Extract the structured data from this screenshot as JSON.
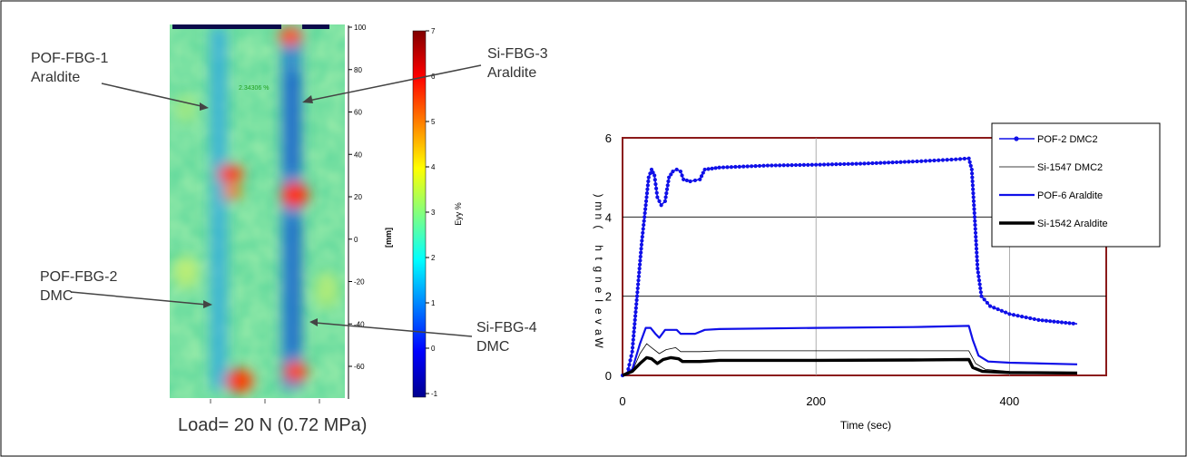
{
  "strain_map": {
    "callouts": {
      "pof_fbg_1": [
        "POF-FBG-1",
        "Araldite"
      ],
      "si_fbg_3": [
        "Si-FBG-3",
        "Araldite"
      ],
      "pof_fbg_2": [
        "POF-FBG-2",
        "DMC"
      ],
      "si_fbg_4": [
        "Si-FBG-4",
        "DMC"
      ]
    },
    "y_axis_label": "[mm]",
    "y_ticks": [
      "100",
      "80",
      "60",
      "40",
      "20",
      "0",
      "-20",
      "-40",
      "-60"
    ],
    "colorbar_label": "Eyy %",
    "colorbar_ticks": [
      "7",
      "6",
      "5",
      "4",
      "3",
      "2",
      "1",
      "0",
      "-1"
    ],
    "probe_readout": "2.34306 %",
    "caption": "Load= 20 N (0.72 MPa)",
    "colormap": [
      "#00008f",
      "#0000ff",
      "#0080ff",
      "#00ffff",
      "#80ff80",
      "#ffff00",
      "#ff8000",
      "#ff0000",
      "#800000"
    ]
  },
  "chart_data": {
    "type": "line",
    "xlabel": "Time (sec)",
    "ylabel": "Wavelength (nm)",
    "xlim": [
      0,
      500
    ],
    "ylim": [
      0,
      6
    ],
    "x_ticks": [
      0,
      200,
      400
    ],
    "y_ticks": [
      0,
      2,
      4,
      6
    ],
    "grid": "vertical and horizontal",
    "legend_position": "top-right",
    "series": [
      {
        "name": "POF-2 DMC2",
        "color": "#1010e8",
        "style": "line-markers",
        "points": [
          [
            0,
            0
          ],
          [
            5,
            0.05
          ],
          [
            10,
            0.6
          ],
          [
            15,
            2.0
          ],
          [
            20,
            3.4
          ],
          [
            24,
            4.3
          ],
          [
            27,
            5.0
          ],
          [
            30,
            5.2
          ],
          [
            33,
            5.05
          ],
          [
            36,
            4.5
          ],
          [
            40,
            4.3
          ],
          [
            44,
            4.4
          ],
          [
            48,
            5.0
          ],
          [
            52,
            5.15
          ],
          [
            56,
            5.2
          ],
          [
            60,
            5.15
          ],
          [
            63,
            4.95
          ],
          [
            70,
            4.9
          ],
          [
            80,
            4.95
          ],
          [
            85,
            5.2
          ],
          [
            100,
            5.25
          ],
          [
            150,
            5.3
          ],
          [
            200,
            5.32
          ],
          [
            250,
            5.35
          ],
          [
            300,
            5.4
          ],
          [
            340,
            5.45
          ],
          [
            358,
            5.48
          ],
          [
            361,
            5.2
          ],
          [
            364,
            4.0
          ],
          [
            367,
            2.7
          ],
          [
            371,
            2.0
          ],
          [
            380,
            1.75
          ],
          [
            400,
            1.55
          ],
          [
            430,
            1.4
          ],
          [
            470,
            1.3
          ]
        ]
      },
      {
        "name": "Si-1547 DMC2",
        "color": "#000000",
        "style": "thin",
        "points": [
          [
            0,
            0
          ],
          [
            10,
            0.1
          ],
          [
            18,
            0.55
          ],
          [
            25,
            0.8
          ],
          [
            30,
            0.7
          ],
          [
            38,
            0.55
          ],
          [
            45,
            0.65
          ],
          [
            55,
            0.7
          ],
          [
            60,
            0.6
          ],
          [
            80,
            0.6
          ],
          [
            100,
            0.62
          ],
          [
            200,
            0.62
          ],
          [
            300,
            0.62
          ],
          [
            358,
            0.62
          ],
          [
            365,
            0.3
          ],
          [
            375,
            0.15
          ],
          [
            400,
            0.1
          ],
          [
            470,
            0.08
          ]
        ]
      },
      {
        "name": "POF-6 Araldite",
        "color": "#1010e8",
        "style": "thick",
        "points": [
          [
            0,
            0
          ],
          [
            10,
            0.15
          ],
          [
            18,
            0.8
          ],
          [
            24,
            1.2
          ],
          [
            29,
            1.2
          ],
          [
            34,
            1.05
          ],
          [
            38,
            0.95
          ],
          [
            44,
            1.15
          ],
          [
            50,
            1.15
          ],
          [
            56,
            1.15
          ],
          [
            60,
            1.05
          ],
          [
            75,
            1.05
          ],
          [
            85,
            1.15
          ],
          [
            100,
            1.17
          ],
          [
            200,
            1.2
          ],
          [
            300,
            1.22
          ],
          [
            358,
            1.25
          ],
          [
            362,
            0.9
          ],
          [
            368,
            0.5
          ],
          [
            378,
            0.35
          ],
          [
            400,
            0.32
          ],
          [
            470,
            0.28
          ]
        ]
      },
      {
        "name": "Si-1542 Araldite",
        "color": "#000000",
        "style": "thickest",
        "points": [
          [
            0,
            0
          ],
          [
            10,
            0.1
          ],
          [
            18,
            0.3
          ],
          [
            25,
            0.45
          ],
          [
            30,
            0.42
          ],
          [
            36,
            0.3
          ],
          [
            42,
            0.4
          ],
          [
            50,
            0.45
          ],
          [
            58,
            0.42
          ],
          [
            62,
            0.35
          ],
          [
            80,
            0.35
          ],
          [
            100,
            0.38
          ],
          [
            200,
            0.38
          ],
          [
            300,
            0.39
          ],
          [
            358,
            0.4
          ],
          [
            362,
            0.2
          ],
          [
            372,
            0.1
          ],
          [
            400,
            0.07
          ],
          [
            470,
            0.06
          ]
        ]
      }
    ]
  }
}
